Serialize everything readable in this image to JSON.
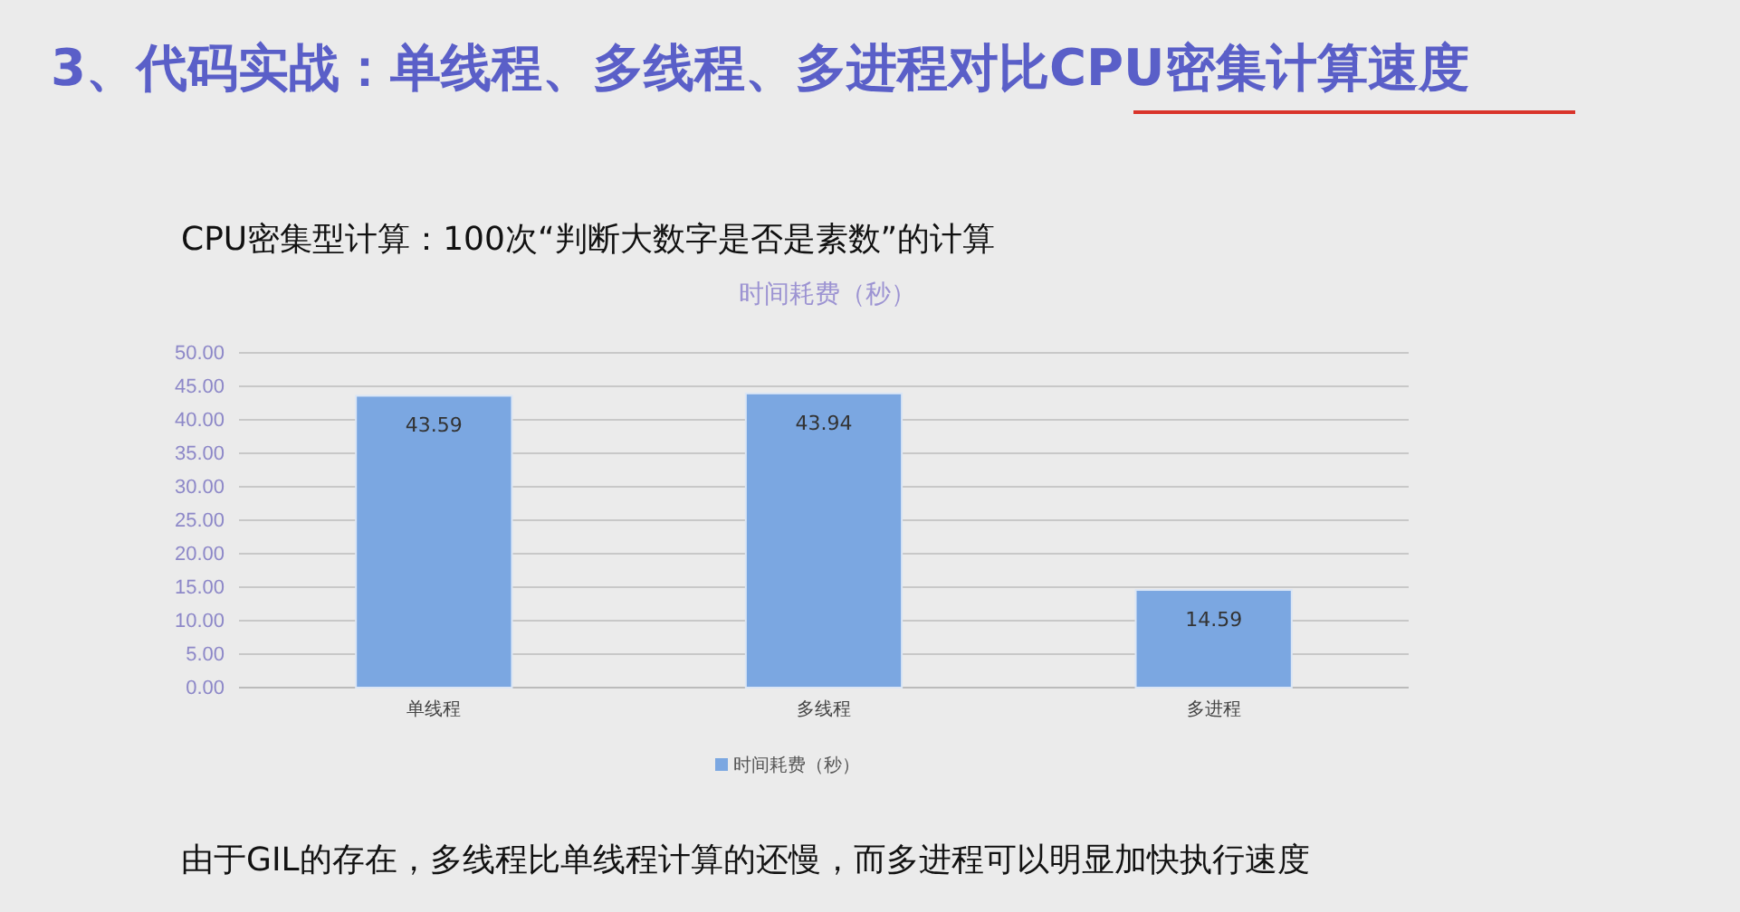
{
  "chart_data": {
    "type": "bar",
    "title": "时间耗费（秒）",
    "categories": [
      "单线程",
      "多线程",
      "多进程"
    ],
    "series": [
      {
        "name": "时间耗费（秒）",
        "color": "#7ba7e1",
        "values": [
          43.59,
          43.94,
          14.59
        ]
      }
    ],
    "ylim": [
      0,
      50
    ],
    "yticks": [
      {
        "value": 0,
        "label": "0.00"
      },
      {
        "value": 5,
        "label": "5.00"
      },
      {
        "value": 10,
        "label": "10.00"
      },
      {
        "value": 15,
        "label": "15.00"
      },
      {
        "value": 20,
        "label": "20.00"
      },
      {
        "value": 25,
        "label": "25.00"
      },
      {
        "value": 30,
        "label": "30.00"
      },
      {
        "value": 35,
        "label": "35.00"
      },
      {
        "value": 40,
        "label": "40.00"
      },
      {
        "value": 45,
        "label": "45.00"
      },
      {
        "value": 50,
        "label": "50.00"
      }
    ],
    "grid": "y",
    "legend": "bottom",
    "data_labels": true,
    "annotations": [
      "3、代码实战：单线程、多线程、多进程对比CPU密集计算速度",
      "CPU密集型计算：100次“判断大数字是否是素数”的计算",
      "由于GIL的存在，多线程比单线程计算的还慢，而多进程可以明显加快执行速度"
    ]
  }
}
